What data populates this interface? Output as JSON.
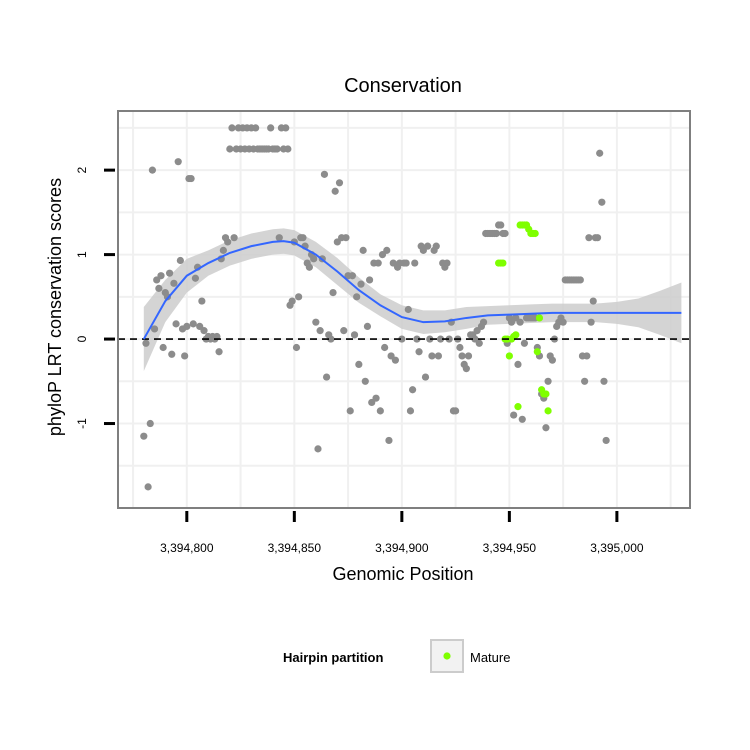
{
  "chart_data": {
    "type": "scatter",
    "title": "Conservation",
    "xlabel": "Genomic Position",
    "ylabel": "phyloP LRT conservation scores",
    "xlim": [
      3394768,
      3395034
    ],
    "ylim": [
      -2.0,
      2.7
    ],
    "xticks": [
      3394800,
      3394850,
      3394900,
      3394950,
      3395000
    ],
    "xtick_labels": [
      "3,394,800",
      "3,394,850",
      "3,394,900",
      "3,394,950",
      "3,395,000"
    ],
    "yticks": [
      -1,
      0,
      1,
      2
    ],
    "ytick_labels": [
      "-1",
      "0",
      "1",
      "2"
    ],
    "reference_line": {
      "y": 0,
      "style": "dashed"
    },
    "colors": {
      "points": "#8c8c8c",
      "mature": "#7fff00",
      "smooth": "#3366ff",
      "ribbon": "#cccccc",
      "grid": "#f0f0f0",
      "border": "#7f7f7f"
    },
    "legend": {
      "title": "Hairpin partition",
      "entries": [
        "Mature"
      ],
      "placement": "bottom"
    },
    "series": [
      {
        "name": "Hairpin",
        "points": [
          [
            3394780,
            -1.15
          ],
          [
            3394781,
            -0.05
          ],
          [
            3394782,
            -1.75
          ],
          [
            3394783,
            -1.0
          ],
          [
            3394784,
            2.0
          ],
          [
            3394785,
            0.12
          ],
          [
            3394786,
            0.7
          ],
          [
            3394787,
            0.6
          ],
          [
            3394788,
            0.75
          ],
          [
            3394789,
            -0.1
          ],
          [
            3394790,
            0.55
          ],
          [
            3394791,
            0.5
          ],
          [
            3394792,
            0.78
          ],
          [
            3394793,
            -0.18
          ],
          [
            3394794,
            0.66
          ],
          [
            3394795,
            0.18
          ],
          [
            3394796,
            2.1
          ],
          [
            3394797,
            0.93
          ],
          [
            3394798,
            0.12
          ],
          [
            3394799,
            -0.2
          ],
          [
            3394800,
            0.15
          ],
          [
            3394801,
            1.9
          ],
          [
            3394802,
            1.9
          ],
          [
            3394803,
            0.18
          ],
          [
            3394804,
            0.72
          ],
          [
            3394805,
            0.85
          ],
          [
            3394806,
            0.15
          ],
          [
            3394807,
            0.45
          ],
          [
            3394808,
            0.1
          ],
          [
            3394809,
            0.0
          ],
          [
            3394810,
            0.03
          ],
          [
            3394811,
            0.0
          ],
          [
            3394812,
            0.03
          ],
          [
            3394813,
            0.0
          ],
          [
            3394814,
            0.03
          ],
          [
            3394815,
            -0.15
          ],
          [
            3394816,
            0.95
          ],
          [
            3394817,
            1.05
          ],
          [
            3394818,
            1.2
          ],
          [
            3394819,
            1.15
          ],
          [
            3394820,
            2.25
          ],
          [
            3394821,
            2.5
          ],
          [
            3394822,
            1.2
          ],
          [
            3394823,
            2.25
          ],
          [
            3394824,
            2.5
          ],
          [
            3394825,
            2.25
          ],
          [
            3394826,
            2.5
          ],
          [
            3394827,
            2.25
          ],
          [
            3394828,
            2.5
          ],
          [
            3394829,
            2.25
          ],
          [
            3394830,
            2.5
          ],
          [
            3394831,
            2.25
          ],
          [
            3394832,
            2.5
          ],
          [
            3394833,
            2.25
          ],
          [
            3394834,
            2.25
          ],
          [
            3394835,
            2.25
          ],
          [
            3394836,
            2.25
          ],
          [
            3394837,
            2.25
          ],
          [
            3394838,
            2.25
          ],
          [
            3394839,
            2.5
          ],
          [
            3394840,
            2.25
          ],
          [
            3394841,
            2.25
          ],
          [
            3394842,
            2.25
          ],
          [
            3394843,
            1.2
          ],
          [
            3394844,
            2.5
          ],
          [
            3394845,
            2.25
          ],
          [
            3394846,
            2.5
          ],
          [
            3394847,
            2.25
          ],
          [
            3394848,
            0.4
          ],
          [
            3394849,
            0.45
          ],
          [
            3394850,
            1.15
          ],
          [
            3394851,
            -0.1
          ],
          [
            3394852,
            0.5
          ],
          [
            3394853,
            1.2
          ],
          [
            3394854,
            1.2
          ],
          [
            3394855,
            1.1
          ],
          [
            3394856,
            0.9
          ],
          [
            3394857,
            0.85
          ],
          [
            3394858,
            1.0
          ],
          [
            3394859,
            0.95
          ],
          [
            3394860,
            0.2
          ],
          [
            3394861,
            -1.3
          ],
          [
            3394862,
            0.1
          ],
          [
            3394863,
            0.95
          ],
          [
            3394864,
            1.95
          ],
          [
            3394865,
            -0.45
          ],
          [
            3394866,
            0.05
          ],
          [
            3394867,
            0.0
          ],
          [
            3394868,
            0.55
          ],
          [
            3394869,
            1.75
          ],
          [
            3394870,
            1.15
          ],
          [
            3394871,
            1.85
          ],
          [
            3394872,
            1.2
          ],
          [
            3394873,
            0.1
          ],
          [
            3394874,
            1.2
          ],
          [
            3394875,
            0.75
          ],
          [
            3394876,
            -0.85
          ],
          [
            3394877,
            0.75
          ],
          [
            3394878,
            0.05
          ],
          [
            3394879,
            0.5
          ],
          [
            3394880,
            -0.3
          ],
          [
            3394881,
            0.65
          ],
          [
            3394882,
            1.05
          ],
          [
            3394883,
            -0.5
          ],
          [
            3394884,
            0.15
          ],
          [
            3394885,
            0.7
          ],
          [
            3394886,
            -0.75
          ],
          [
            3394887,
            0.9
          ],
          [
            3394888,
            -0.7
          ],
          [
            3394889,
            0.9
          ],
          [
            3394890,
            -0.85
          ],
          [
            3394891,
            1.0
          ],
          [
            3394892,
            -0.1
          ],
          [
            3394893,
            1.05
          ],
          [
            3394894,
            -1.2
          ],
          [
            3394895,
            -0.2
          ],
          [
            3394896,
            0.9
          ],
          [
            3394897,
            -0.25
          ],
          [
            3394898,
            0.85
          ],
          [
            3394899,
            0.9
          ],
          [
            3394900,
            0.0
          ],
          [
            3394901,
            0.9
          ],
          [
            3394902,
            0.9
          ],
          [
            3394903,
            0.35
          ],
          [
            3394904,
            -0.85
          ],
          [
            3394905,
            -0.6
          ],
          [
            3394906,
            0.9
          ],
          [
            3394907,
            0.0
          ],
          [
            3394908,
            -0.15
          ],
          [
            3394909,
            1.1
          ],
          [
            3394910,
            1.05
          ],
          [
            3394911,
            -0.45
          ],
          [
            3394912,
            1.1
          ],
          [
            3394913,
            0.0
          ],
          [
            3394914,
            -0.2
          ],
          [
            3394915,
            1.05
          ],
          [
            3394916,
            1.1
          ],
          [
            3394917,
            -0.2
          ],
          [
            3394918,
            0.0
          ],
          [
            3394919,
            0.9
          ],
          [
            3394920,
            0.85
          ],
          [
            3394921,
            0.9
          ],
          [
            3394922,
            0.0
          ],
          [
            3394923,
            0.2
          ],
          [
            3394924,
            -0.85
          ],
          [
            3394925,
            -0.85
          ],
          [
            3394926,
            0.0
          ],
          [
            3394927,
            -0.1
          ],
          [
            3394928,
            -0.2
          ],
          [
            3394929,
            -0.3
          ],
          [
            3394930,
            -0.35
          ],
          [
            3394931,
            -0.2
          ],
          [
            3394932,
            0.05
          ],
          [
            3394933,
            0.05
          ],
          [
            3394934,
            0.0
          ],
          [
            3394935,
            0.1
          ],
          [
            3394936,
            -0.05
          ],
          [
            3394937,
            0.15
          ],
          [
            3394938,
            0.2
          ],
          [
            3394939,
            1.25
          ],
          [
            3394940,
            1.25
          ],
          [
            3394941,
            1.25
          ],
          [
            3394942,
            1.25
          ],
          [
            3394943,
            1.25
          ],
          [
            3394944,
            1.25
          ],
          [
            3394945,
            1.35
          ],
          [
            3394946,
            1.35
          ],
          [
            3394947,
            1.25
          ],
          [
            3394948,
            1.25
          ],
          [
            3394949,
            -0.05
          ],
          [
            3394950,
            0.25
          ],
          [
            3394951,
            0.2
          ],
          [
            3394952,
            -0.9
          ],
          [
            3394953,
            0.25
          ],
          [
            3394954,
            -0.3
          ],
          [
            3394955,
            0.2
          ],
          [
            3394956,
            -0.95
          ],
          [
            3394957,
            -0.05
          ],
          [
            3394958,
            0.25
          ],
          [
            3394959,
            0.25
          ],
          [
            3394960,
            0.25
          ],
          [
            3394961,
            0.25
          ],
          [
            3394962,
            0.25
          ],
          [
            3394963,
            -0.1
          ],
          [
            3394964,
            -0.2
          ],
          [
            3394965,
            -0.65
          ],
          [
            3394966,
            -0.7
          ],
          [
            3394967,
            -1.05
          ],
          [
            3394968,
            -0.5
          ],
          [
            3394969,
            -0.2
          ],
          [
            3394970,
            -0.25
          ],
          [
            3394971,
            0.0
          ],
          [
            3394972,
            0.15
          ],
          [
            3394973,
            0.2
          ],
          [
            3394974,
            0.25
          ],
          [
            3394975,
            0.2
          ],
          [
            3394976,
            0.7
          ],
          [
            3394977,
            0.7
          ],
          [
            3394978,
            0.7
          ],
          [
            3394979,
            0.7
          ],
          [
            3394980,
            0.7
          ],
          [
            3394981,
            0.7
          ],
          [
            3394982,
            0.7
          ],
          [
            3394983,
            0.7
          ],
          [
            3394984,
            -0.2
          ],
          [
            3394985,
            -0.5
          ],
          [
            3394986,
            -0.2
          ],
          [
            3394987,
            1.2
          ],
          [
            3394988,
            0.2
          ],
          [
            3394989,
            0.45
          ],
          [
            3394990,
            1.2
          ],
          [
            3394991,
            1.2
          ],
          [
            3394992,
            2.2
          ],
          [
            3394993,
            1.62
          ],
          [
            3394994,
            -0.5
          ],
          [
            3394995,
            -1.2
          ]
        ]
      },
      {
        "name": "Mature",
        "points": [
          [
            3394945,
            0.9
          ],
          [
            3394946,
            0.9
          ],
          [
            3394947,
            0.9
          ],
          [
            3394948,
            0.0
          ],
          [
            3394949,
            0.0
          ],
          [
            3394950,
            -0.2
          ],
          [
            3394951,
            0.0
          ],
          [
            3394952,
            0.03
          ],
          [
            3394953,
            0.05
          ],
          [
            3394954,
            -0.8
          ],
          [
            3394955,
            1.35
          ],
          [
            3394956,
            1.35
          ],
          [
            3394957,
            1.35
          ],
          [
            3394958,
            1.35
          ],
          [
            3394959,
            1.3
          ],
          [
            3394960,
            1.25
          ],
          [
            3394961,
            1.25
          ],
          [
            3394962,
            1.25
          ],
          [
            3394963,
            -0.15
          ],
          [
            3394964,
            0.25
          ],
          [
            3394965,
            -0.6
          ],
          [
            3394966,
            -0.65
          ],
          [
            3394967,
            -0.65
          ],
          [
            3394968,
            -0.85
          ]
        ]
      }
    ],
    "smooth": {
      "x": [
        3394780,
        3394790,
        3394800,
        3394810,
        3394820,
        3394830,
        3394840,
        3394845,
        3394850,
        3394860,
        3394870,
        3394880,
        3394890,
        3394900,
        3394910,
        3394920,
        3394930,
        3394940,
        3394950,
        3394960,
        3394970,
        3394980,
        3394990,
        3395000,
        3395010,
        3395020,
        3395030
      ],
      "y": [
        0.0,
        0.45,
        0.75,
        0.9,
        1.02,
        1.1,
        1.15,
        1.16,
        1.14,
        1.0,
        0.8,
        0.58,
        0.4,
        0.26,
        0.2,
        0.21,
        0.25,
        0.28,
        0.29,
        0.3,
        0.31,
        0.31,
        0.31,
        0.31,
        0.31,
        0.31,
        0.31
      ],
      "lower": [
        -0.38,
        0.2,
        0.55,
        0.75,
        0.87,
        0.95,
        1.0,
        1.01,
        0.99,
        0.85,
        0.64,
        0.43,
        0.27,
        0.12,
        0.06,
        0.08,
        0.12,
        0.17,
        0.18,
        0.19,
        0.2,
        0.2,
        0.2,
        0.18,
        0.14,
        0.05,
        -0.05
      ],
      "upper": [
        0.38,
        0.7,
        0.95,
        1.05,
        1.17,
        1.25,
        1.3,
        1.31,
        1.29,
        1.15,
        0.96,
        0.73,
        0.53,
        0.4,
        0.34,
        0.34,
        0.38,
        0.39,
        0.4,
        0.41,
        0.42,
        0.42,
        0.42,
        0.44,
        0.48,
        0.57,
        0.67
      ]
    }
  }
}
